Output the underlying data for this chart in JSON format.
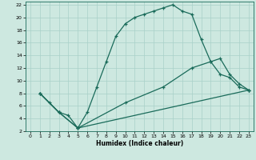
{
  "xlabel": "Humidex (Indice chaleur)",
  "bg_color": "#cde8e0",
  "line_color": "#1a6b5a",
  "xlim": [
    -0.5,
    23.5
  ],
  "ylim": [
    2,
    22.5
  ],
  "xticks": [
    0,
    1,
    2,
    3,
    4,
    5,
    6,
    7,
    8,
    9,
    10,
    11,
    12,
    13,
    14,
    15,
    16,
    17,
    18,
    19,
    20,
    21,
    22,
    23
  ],
  "yticks": [
    2,
    4,
    6,
    8,
    10,
    12,
    14,
    16,
    18,
    20,
    22
  ],
  "line1_x": [
    1,
    2,
    3,
    4,
    5,
    6,
    7,
    8,
    9,
    10,
    11,
    12,
    13,
    14,
    15,
    16,
    17,
    18,
    19,
    20,
    21,
    22,
    23
  ],
  "line1_y": [
    8,
    6.5,
    5,
    4.5,
    2.5,
    5,
    9,
    13,
    17,
    19,
    20,
    20.5,
    21,
    21.5,
    22,
    21,
    20.5,
    16.5,
    13,
    11,
    10.5,
    9,
    8.5
  ],
  "line2_x": [
    1,
    3,
    5,
    23
  ],
  "line2_y": [
    8,
    5,
    2.5,
    8.5
  ],
  "line3_x": [
    1,
    3,
    5,
    10,
    14,
    17,
    19,
    20,
    21,
    22,
    23
  ],
  "line3_y": [
    8,
    5,
    2.5,
    6.5,
    9,
    12,
    13,
    13.5,
    11,
    9.5,
    8.5
  ]
}
